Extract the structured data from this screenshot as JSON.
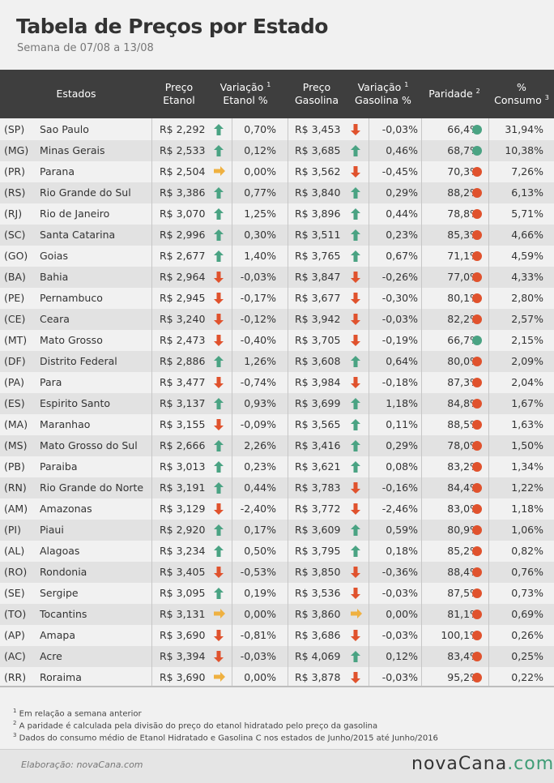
{
  "title": "Tabela de Preços por Estado",
  "subtitle": "Semana de 07/08 a 13/08",
  "headers": {
    "estados": "Estados",
    "preco_etanol_1": "Preço",
    "preco_etanol_2": "Etanol",
    "var_etanol_1": "Variação",
    "var_etanol_2": "Etanol %",
    "preco_gasolina_1": "Preço",
    "preco_gasolina_2": "Gasolina",
    "var_gasolina_1": "Variação",
    "var_gasolina_2": "Gasolina %",
    "paridade": "Paridade",
    "consumo_1": "%",
    "consumo_2": "Consumo",
    "sup1": "1",
    "sup2": "2",
    "sup3": "3"
  },
  "colors": {
    "up": "#4aa383",
    "down": "#e0522d",
    "flat": "#efb141",
    "green_dot": "#4aa383",
    "red_dot": "#e0522d"
  },
  "rows": [
    {
      "uf": "(SP)",
      "nome": "Sao Paulo",
      "etanol": "R$ 2,292",
      "ae": "up",
      "ve": "0,70%",
      "gasolina": "R$ 3,453",
      "ag": "down",
      "vg": "-0,03%",
      "paridade": "66,4%",
      "dot": "green",
      "consumo": "31,94%"
    },
    {
      "uf": "(MG)",
      "nome": "Minas Gerais",
      "etanol": "R$ 2,533",
      "ae": "up",
      "ve": "0,12%",
      "gasolina": "R$ 3,685",
      "ag": "up",
      "vg": "0,46%",
      "paridade": "68,7%",
      "dot": "green",
      "consumo": "10,38%"
    },
    {
      "uf": "(PR)",
      "nome": "Parana",
      "etanol": "R$ 2,504",
      "ae": "flat",
      "ve": "0,00%",
      "gasolina": "R$ 3,562",
      "ag": "down",
      "vg": "-0,45%",
      "paridade": "70,3%",
      "dot": "red",
      "consumo": "7,26%"
    },
    {
      "uf": "(RS)",
      "nome": "Rio Grande do Sul",
      "etanol": "R$ 3,386",
      "ae": "up",
      "ve": "0,77%",
      "gasolina": "R$ 3,840",
      "ag": "up",
      "vg": "0,29%",
      "paridade": "88,2%",
      "dot": "red",
      "consumo": "6,13%"
    },
    {
      "uf": "(RJ)",
      "nome": "Rio de Janeiro",
      "etanol": "R$ 3,070",
      "ae": "up",
      "ve": "1,25%",
      "gasolina": "R$ 3,896",
      "ag": "up",
      "vg": "0,44%",
      "paridade": "78,8%",
      "dot": "red",
      "consumo": "5,71%"
    },
    {
      "uf": "(SC)",
      "nome": "Santa Catarina",
      "etanol": "R$ 2,996",
      "ae": "up",
      "ve": "0,30%",
      "gasolina": "R$ 3,511",
      "ag": "up",
      "vg": "0,23%",
      "paridade": "85,3%",
      "dot": "red",
      "consumo": "4,66%"
    },
    {
      "uf": "(GO)",
      "nome": "Goias",
      "etanol": "R$ 2,677",
      "ae": "up",
      "ve": "1,40%",
      "gasolina": "R$ 3,765",
      "ag": "up",
      "vg": "0,67%",
      "paridade": "71,1%",
      "dot": "red",
      "consumo": "4,59%"
    },
    {
      "uf": "(BA)",
      "nome": "Bahia",
      "etanol": "R$ 2,964",
      "ae": "down",
      "ve": "-0,03%",
      "gasolina": "R$ 3,847",
      "ag": "down",
      "vg": "-0,26%",
      "paridade": "77,0%",
      "dot": "red",
      "consumo": "4,33%"
    },
    {
      "uf": "(PE)",
      "nome": "Pernambuco",
      "etanol": "R$ 2,945",
      "ae": "down",
      "ve": "-0,17%",
      "gasolina": "R$ 3,677",
      "ag": "down",
      "vg": "-0,30%",
      "paridade": "80,1%",
      "dot": "red",
      "consumo": "2,80%"
    },
    {
      "uf": "(CE)",
      "nome": "Ceara",
      "etanol": "R$ 3,240",
      "ae": "down",
      "ve": "-0,12%",
      "gasolina": "R$ 3,942",
      "ag": "down",
      "vg": "-0,03%",
      "paridade": "82,2%",
      "dot": "red",
      "consumo": "2,57%"
    },
    {
      "uf": "(MT)",
      "nome": "Mato Grosso",
      "etanol": "R$ 2,473",
      "ae": "down",
      "ve": "-0,40%",
      "gasolina": "R$ 3,705",
      "ag": "down",
      "vg": "-0,19%",
      "paridade": "66,7%",
      "dot": "green",
      "consumo": "2,15%"
    },
    {
      "uf": "(DF)",
      "nome": "Distrito Federal",
      "etanol": "R$ 2,886",
      "ae": "up",
      "ve": "1,26%",
      "gasolina": "R$ 3,608",
      "ag": "up",
      "vg": "0,64%",
      "paridade": "80,0%",
      "dot": "red",
      "consumo": "2,09%"
    },
    {
      "uf": "(PA)",
      "nome": "Para",
      "etanol": "R$ 3,477",
      "ae": "down",
      "ve": "-0,74%",
      "gasolina": "R$ 3,984",
      "ag": "down",
      "vg": "-0,18%",
      "paridade": "87,3%",
      "dot": "red",
      "consumo": "2,04%"
    },
    {
      "uf": "(ES)",
      "nome": "Espirito Santo",
      "etanol": "R$ 3,137",
      "ae": "up",
      "ve": "0,93%",
      "gasolina": "R$ 3,699",
      "ag": "up",
      "vg": "1,18%",
      "paridade": "84,8%",
      "dot": "red",
      "consumo": "1,67%"
    },
    {
      "uf": "(MA)",
      "nome": "Maranhao",
      "etanol": "R$ 3,155",
      "ae": "down",
      "ve": "-0,09%",
      "gasolina": "R$ 3,565",
      "ag": "up",
      "vg": "0,11%",
      "paridade": "88,5%",
      "dot": "red",
      "consumo": "1,63%"
    },
    {
      "uf": "(MS)",
      "nome": "Mato Grosso do Sul",
      "etanol": "R$ 2,666",
      "ae": "up",
      "ve": "2,26%",
      "gasolina": "R$ 3,416",
      "ag": "up",
      "vg": "0,29%",
      "paridade": "78,0%",
      "dot": "red",
      "consumo": "1,50%"
    },
    {
      "uf": "(PB)",
      "nome": "Paraiba",
      "etanol": "R$ 3,013",
      "ae": "up",
      "ve": "0,23%",
      "gasolina": "R$ 3,621",
      "ag": "up",
      "vg": "0,08%",
      "paridade": "83,2%",
      "dot": "red",
      "consumo": "1,34%"
    },
    {
      "uf": "(RN)",
      "nome": "Rio Grande do Norte",
      "etanol": "R$ 3,191",
      "ae": "up",
      "ve": "0,44%",
      "gasolina": "R$ 3,783",
      "ag": "down",
      "vg": "-0,16%",
      "paridade": "84,4%",
      "dot": "red",
      "consumo": "1,22%"
    },
    {
      "uf": "(AM)",
      "nome": "Amazonas",
      "etanol": "R$ 3,129",
      "ae": "down",
      "ve": "-2,40%",
      "gasolina": "R$ 3,772",
      "ag": "down",
      "vg": "-2,46%",
      "paridade": "83,0%",
      "dot": "red",
      "consumo": "1,18%"
    },
    {
      "uf": "(PI)",
      "nome": "Piaui",
      "etanol": "R$ 2,920",
      "ae": "up",
      "ve": "0,17%",
      "gasolina": "R$ 3,609",
      "ag": "up",
      "vg": "0,59%",
      "paridade": "80,9%",
      "dot": "red",
      "consumo": "1,06%"
    },
    {
      "uf": "(AL)",
      "nome": "Alagoas",
      "etanol": "R$ 3,234",
      "ae": "up",
      "ve": "0,50%",
      "gasolina": "R$ 3,795",
      "ag": "up",
      "vg": "0,18%",
      "paridade": "85,2%",
      "dot": "red",
      "consumo": "0,82%"
    },
    {
      "uf": "(RO)",
      "nome": "Rondonia",
      "etanol": "R$ 3,405",
      "ae": "down",
      "ve": "-0,53%",
      "gasolina": "R$ 3,850",
      "ag": "down",
      "vg": "-0,36%",
      "paridade": "88,4%",
      "dot": "red",
      "consumo": "0,76%"
    },
    {
      "uf": "(SE)",
      "nome": "Sergipe",
      "etanol": "R$ 3,095",
      "ae": "up",
      "ve": "0,19%",
      "gasolina": "R$ 3,536",
      "ag": "down",
      "vg": "-0,03%",
      "paridade": "87,5%",
      "dot": "red",
      "consumo": "0,73%"
    },
    {
      "uf": "(TO)",
      "nome": "Tocantins",
      "etanol": "R$ 3,131",
      "ae": "flat",
      "ve": "0,00%",
      "gasolina": "R$ 3,860",
      "ag": "flat",
      "vg": "0,00%",
      "paridade": "81,1%",
      "dot": "red",
      "consumo": "0,69%"
    },
    {
      "uf": "(AP)",
      "nome": "Amapa",
      "etanol": "R$ 3,690",
      "ae": "down",
      "ve": "-0,81%",
      "gasolina": "R$ 3,686",
      "ag": "down",
      "vg": "-0,03%",
      "paridade": "100,1%",
      "dot": "red",
      "consumo": "0,26%"
    },
    {
      "uf": "(AC)",
      "nome": "Acre",
      "etanol": "R$ 3,394",
      "ae": "down",
      "ve": "-0,03%",
      "gasolina": "R$ 4,069",
      "ag": "up",
      "vg": "0,12%",
      "paridade": "83,4%",
      "dot": "red",
      "consumo": "0,25%"
    },
    {
      "uf": "(RR)",
      "nome": "Roraima",
      "etanol": "R$ 3,690",
      "ae": "flat",
      "ve": "0,00%",
      "gasolina": "R$ 3,878",
      "ag": "down",
      "vg": "-0,03%",
      "paridade": "95,2%",
      "dot": "red",
      "consumo": "0,22%"
    }
  ],
  "footnotes": {
    "n1_mark": "1",
    "n1": "Em relação a semana anterior",
    "n2_mark": "2",
    "n2": "A paridade é calculada pela divisão do preço do etanol hidratado pelo preço da gasolina",
    "n3_mark": "3",
    "n3": "Dados do consumo médio de Etanol Hidratado e Gasolina C nos estados de Junho/2015 até Junho/2016"
  },
  "credit": "Elaboração: novaCana.com",
  "logo": {
    "part1": "nova",
    "part2": "Cana",
    "part3": ".com"
  }
}
